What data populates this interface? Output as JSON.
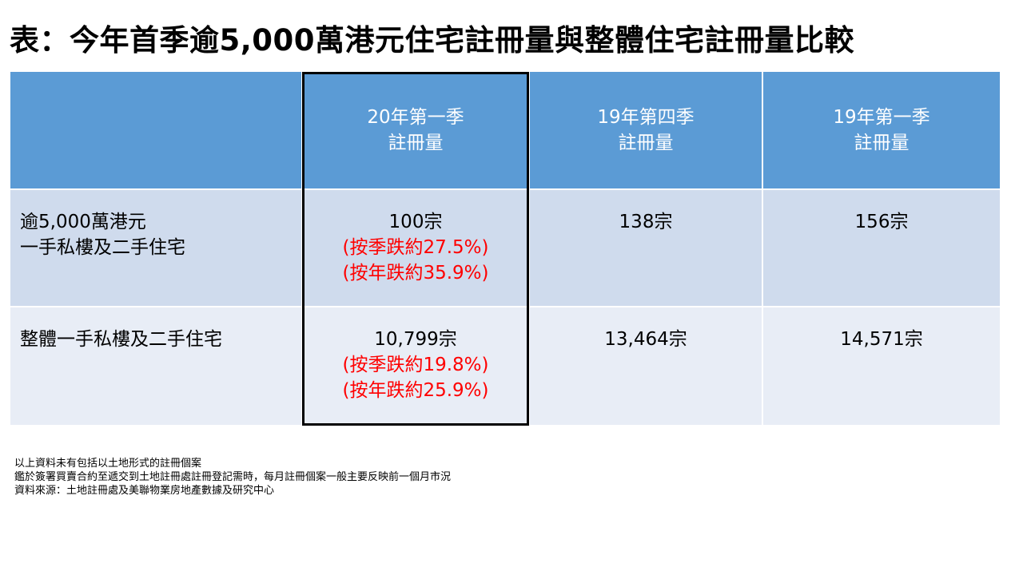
{
  "title": "表：今年首季逾5,000萬港元住宅註冊量與整體住宅註冊量比較",
  "table": {
    "headers": [
      {
        "line1": "",
        "line2": ""
      },
      {
        "line1": "20年第一季",
        "line2": "註冊量"
      },
      {
        "line1": "19年第四季",
        "line2": "註冊量"
      },
      {
        "line1": "19年第一季",
        "line2": "註冊量"
      }
    ],
    "rows": [
      {
        "label_line1": "逾5,000萬港元",
        "label_line2": "一手私樓及二手住宅",
        "q1_2020": "100宗",
        "q1_2020_qoq": "(按季跌約27.5%)",
        "q1_2020_yoy": "(按年跌約35.9%)",
        "q4_2019": "138宗",
        "q1_2019": "156宗"
      },
      {
        "label_line1": "整體一手私樓及二手住宅",
        "label_line2": "",
        "q1_2020": "10,799宗",
        "q1_2020_qoq": "(按季跌約19.8%)",
        "q1_2020_yoy": "(按年跌約25.9%)",
        "q4_2019": "13,464宗",
        "q1_2019": "14,571宗"
      }
    ]
  },
  "notes": [
    "以上資料未有包括以土地形式的註冊個案",
    "鑑於簽署買賣合約至遞交到土地註冊處註冊登記需時，每月註冊個案一般主要反映前一個月市況",
    "資料來源：土地註冊處及美聯物業房地產數據及研究中心"
  ],
  "colors": {
    "header_bg": "#5b9bd5",
    "row1_bg": "#cfdbed",
    "row2_bg": "#e8edf6",
    "change_text": "#ff0000",
    "highlight_border": "#000000"
  }
}
